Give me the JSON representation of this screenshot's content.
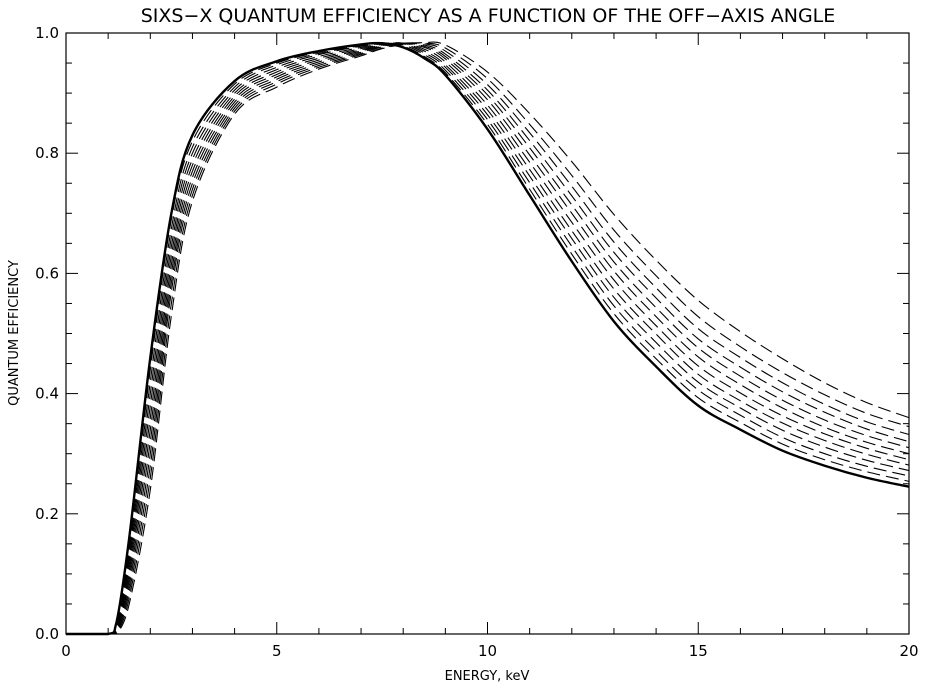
{
  "chart_data": {
    "type": "line",
    "title": "SIXS−X QUANTUM EFFICIENCY AS A FUNCTION OF THE OFF−AXIS ANGLE",
    "xlabel": "ENERGY, keV",
    "ylabel": "QUANTUM EFFICIENCY",
    "xlim": [
      0,
      20
    ],
    "ylim": [
      0,
      1
    ],
    "x_ticks": [
      0,
      5,
      10,
      15,
      20
    ],
    "x_tick_labels": [
      "0",
      "5",
      "10",
      "15",
      "20"
    ],
    "y_ticks": [
      0,
      0.2,
      0.4,
      0.6,
      0.8,
      1.0
    ],
    "y_tick_labels": [
      "0.0",
      "0.2",
      "0.4",
      "0.6",
      "0.8",
      "1.0"
    ],
    "grid": false,
    "series_style": "first series solid, remaining series dashed",
    "x": [
      0,
      1,
      1.2,
      1.5,
      2,
      2.5,
      3,
      4,
      5,
      6,
      7,
      7.5,
      8,
      8.5,
      9,
      10,
      11,
      12,
      13,
      14,
      15,
      16,
      17,
      18,
      19,
      20
    ],
    "series": [
      {
        "values": [
          0,
          0,
          0.02,
          0.16,
          0.46,
          0.7,
          0.83,
          0.92,
          0.953,
          0.97,
          0.981,
          0.983,
          0.976,
          0.958,
          0.93,
          0.84,
          0.73,
          0.62,
          0.52,
          0.445,
          0.38,
          0.34,
          0.305,
          0.28,
          0.26,
          0.245
        ]
      },
      {
        "values": [
          0,
          0,
          0.017,
          0.15,
          0.44,
          0.69,
          0.82,
          0.915,
          0.95,
          0.968,
          0.98,
          0.983,
          0.978,
          0.961,
          0.934,
          0.848,
          0.74,
          0.632,
          0.533,
          0.458,
          0.393,
          0.352,
          0.316,
          0.29,
          0.27,
          0.254
        ]
      },
      {
        "values": [
          0,
          0,
          0.014,
          0.14,
          0.42,
          0.675,
          0.81,
          0.91,
          0.947,
          0.966,
          0.979,
          0.983,
          0.98,
          0.964,
          0.938,
          0.856,
          0.751,
          0.645,
          0.546,
          0.471,
          0.406,
          0.364,
          0.327,
          0.3,
          0.279,
          0.263
        ]
      },
      {
        "values": [
          0,
          0,
          0.011,
          0.13,
          0.4,
          0.66,
          0.8,
          0.905,
          0.943,
          0.964,
          0.978,
          0.982,
          0.982,
          0.967,
          0.943,
          0.864,
          0.762,
          0.658,
          0.56,
          0.485,
          0.419,
          0.376,
          0.339,
          0.311,
          0.289,
          0.272
        ]
      },
      {
        "values": [
          0,
          0,
          0.009,
          0.12,
          0.38,
          0.645,
          0.79,
          0.9,
          0.939,
          0.961,
          0.976,
          0.982,
          0.983,
          0.97,
          0.947,
          0.872,
          0.773,
          0.671,
          0.574,
          0.499,
          0.432,
          0.388,
          0.351,
          0.322,
          0.299,
          0.281
        ]
      },
      {
        "values": [
          0,
          0,
          0.007,
          0.11,
          0.36,
          0.63,
          0.78,
          0.895,
          0.935,
          0.958,
          0.974,
          0.981,
          0.983,
          0.973,
          0.952,
          0.88,
          0.785,
          0.685,
          0.589,
          0.513,
          0.446,
          0.401,
          0.363,
          0.333,
          0.309,
          0.29
        ]
      },
      {
        "values": [
          0,
          0,
          0.005,
          0.1,
          0.34,
          0.615,
          0.77,
          0.89,
          0.931,
          0.955,
          0.972,
          0.98,
          0.983,
          0.976,
          0.957,
          0.889,
          0.797,
          0.7,
          0.604,
          0.528,
          0.461,
          0.415,
          0.376,
          0.344,
          0.319,
          0.3
        ]
      },
      {
        "values": [
          0,
          0,
          0.004,
          0.09,
          0.32,
          0.6,
          0.76,
          0.885,
          0.927,
          0.952,
          0.97,
          0.979,
          0.983,
          0.978,
          0.961,
          0.897,
          0.809,
          0.714,
          0.619,
          0.543,
          0.476,
          0.429,
          0.389,
          0.356,
          0.33,
          0.31
        ]
      },
      {
        "values": [
          0,
          0,
          0.003,
          0.08,
          0.3,
          0.585,
          0.75,
          0.88,
          0.923,
          0.949,
          0.968,
          0.978,
          0.983,
          0.98,
          0.965,
          0.905,
          0.821,
          0.729,
          0.635,
          0.559,
          0.491,
          0.444,
          0.403,
          0.369,
          0.341,
          0.32
        ]
      },
      {
        "values": [
          0,
          0,
          0.002,
          0.07,
          0.28,
          0.57,
          0.74,
          0.875,
          0.919,
          0.946,
          0.966,
          0.977,
          0.983,
          0.982,
          0.97,
          0.914,
          0.834,
          0.745,
          0.652,
          0.576,
          0.508,
          0.46,
          0.418,
          0.382,
          0.353,
          0.332
        ]
      },
      {
        "values": [
          0,
          0,
          0.001,
          0.06,
          0.26,
          0.55,
          0.73,
          0.87,
          0.915,
          0.943,
          0.964,
          0.975,
          0.982,
          0.983,
          0.975,
          0.924,
          0.848,
          0.763,
          0.672,
          0.596,
          0.528,
          0.478,
          0.435,
          0.398,
          0.367,
          0.345
        ]
      },
      {
        "values": [
          0,
          0,
          0.001,
          0.05,
          0.24,
          0.53,
          0.72,
          0.865,
          0.91,
          0.94,
          0.962,
          0.974,
          0.981,
          0.984,
          0.98,
          0.935,
          0.866,
          0.786,
          0.698,
          0.622,
          0.555,
          0.503,
          0.458,
          0.418,
          0.385,
          0.36
        ]
      }
    ]
  }
}
